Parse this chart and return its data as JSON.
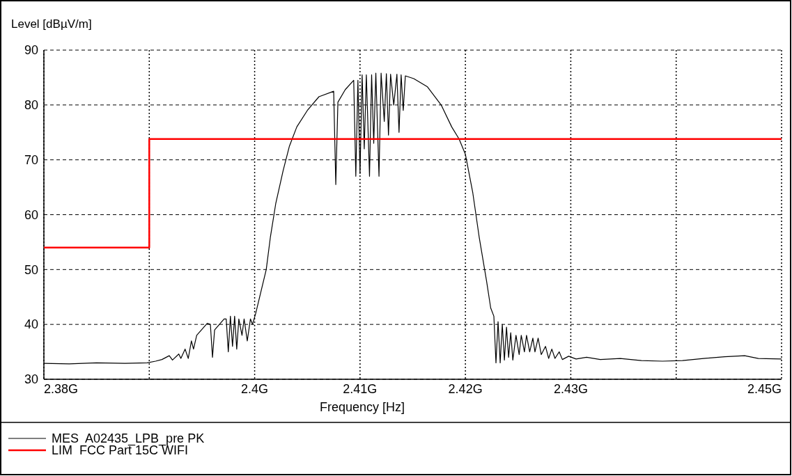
{
  "chart_data": {
    "type": "line",
    "xlabel": "Frequency [Hz]",
    "ylabel": "Level [dBµV/m]",
    "xlim": [
      2.38,
      2.45
    ],
    "ylim": [
      30,
      90
    ],
    "xticks": [
      {
        "value": 2.38,
        "label": "2.38G"
      },
      {
        "value": 2.39,
        "label": null
      },
      {
        "value": 2.4,
        "label": "2.4G"
      },
      {
        "value": 2.41,
        "label": "2.41G"
      },
      {
        "value": 2.42,
        "label": "2.42G"
      },
      {
        "value": 2.43,
        "label": "2.43G"
      },
      {
        "value": 2.44,
        "label": null
      },
      {
        "value": 2.45,
        "label": "2.45G"
      }
    ],
    "yticks": [
      30,
      40,
      50,
      60,
      70,
      80,
      90
    ],
    "grid": true,
    "legend": "bottom",
    "series": [
      {
        "name": "MES  A02435_LPB_pre PK",
        "color": "#000000",
        "x": [
          2.38,
          2.3824,
          2.385,
          2.3877,
          2.3898,
          2.3906,
          2.3912,
          2.3919,
          2.3922,
          2.3928,
          2.393,
          2.3934,
          2.3937,
          2.394,
          2.3942,
          2.3945,
          2.3955,
          2.3958,
          2.396,
          2.3962,
          2.3971,
          2.3973,
          2.3975,
          2.3977,
          2.3979,
          2.3981,
          2.3983,
          2.3985,
          2.3988,
          2.399,
          2.3993,
          2.3996,
          2.3998,
          2.4001,
          2.4006,
          2.4011,
          2.4015,
          2.402,
          2.4027,
          2.4033,
          2.404,
          2.405,
          2.4061,
          2.4075,
          2.4077,
          2.4079,
          2.4086,
          2.4094,
          2.4096,
          2.4098,
          2.41,
          2.4102,
          2.4104,
          2.4106,
          2.4109,
          2.4111,
          2.4113,
          2.4115,
          2.4118,
          2.412,
          2.4123,
          2.4125,
          2.4127,
          2.4129,
          2.4132,
          2.4135,
          2.4137,
          2.4139,
          2.4141,
          2.4143,
          2.4151,
          2.4164,
          2.4177,
          2.4187,
          2.4194,
          2.42,
          2.4207,
          2.4213,
          2.422,
          2.4224,
          2.4227,
          2.4229,
          2.4231,
          2.4233,
          2.4235,
          2.4237,
          2.4239,
          2.4241,
          2.4243,
          2.4245,
          2.4248,
          2.4251,
          2.4253,
          2.4256,
          2.4258,
          2.4261,
          2.4264,
          2.4266,
          2.4269,
          2.4272,
          2.4276,
          2.4279,
          2.4282,
          2.4285,
          2.4289,
          2.4292,
          2.4298,
          2.4305,
          2.4315,
          2.4328,
          2.4347,
          2.4367,
          2.4387,
          2.4406,
          2.4426,
          2.4446,
          2.4465,
          2.4478,
          2.45
        ],
        "values": [
          32.9,
          32.8,
          33.0,
          32.9,
          33.0,
          33.3,
          33.6,
          34.3,
          33.5,
          34.6,
          33.8,
          35.5,
          33.8,
          37.0,
          35.5,
          38.0,
          40.2,
          40.0,
          34.0,
          39.0,
          41.0,
          41.0,
          35.0,
          41.5,
          36.0,
          41.5,
          35.5,
          41.0,
          38.0,
          41.0,
          37.0,
          41.0,
          40.0,
          42.0,
          46,
          50,
          56,
          62,
          68,
          72.5,
          76,
          79,
          81.5,
          82.5,
          65.5,
          80.5,
          82.8,
          84.5,
          67,
          84.5,
          67.5,
          85.5,
          72,
          85.5,
          67,
          85.5,
          73,
          85.8,
          67,
          85.8,
          77,
          85.7,
          74.5,
          85.6,
          80,
          85.6,
          75,
          85.5,
          79,
          85.3,
          84.8,
          83.3,
          80,
          76,
          73.8,
          71,
          64,
          56,
          48,
          43,
          41.5,
          33,
          40.5,
          33,
          40,
          33.5,
          39.5,
          34,
          38.5,
          33.5,
          38,
          34.5,
          38,
          35,
          38,
          35,
          37.5,
          35,
          37.5,
          34.5,
          36,
          33.8,
          35.5,
          33.8,
          35,
          33.6,
          34.2,
          33.7,
          34.0,
          33.6,
          33.8,
          33.4,
          33.3,
          33.4,
          33.8,
          34.1,
          34.3,
          33.8,
          33.7
        ]
      },
      {
        "name": "LIM  FCC Part 15C WIFI",
        "color": "#ff0000",
        "type": "step",
        "x": [
          2.38,
          2.39,
          2.45
        ],
        "values": [
          54,
          73.8,
          73.8
        ]
      }
    ]
  }
}
